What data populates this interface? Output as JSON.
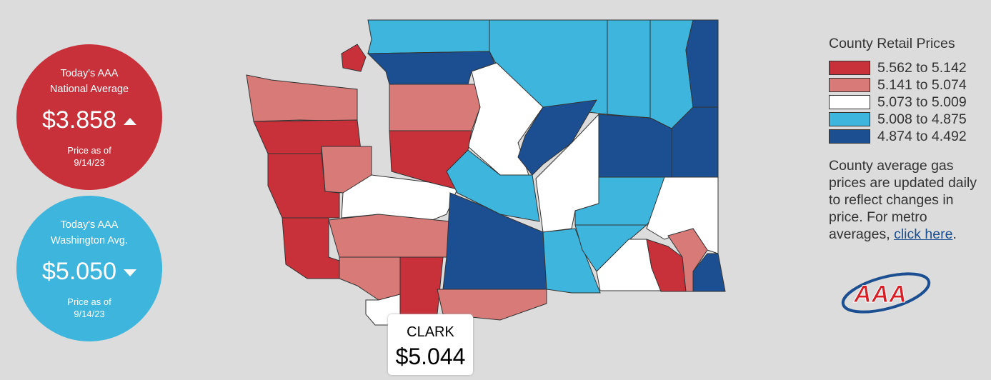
{
  "national": {
    "heading": [
      "Today's AAA",
      "National Average"
    ],
    "price": "$3.858",
    "date_label": [
      "Price as of",
      "9/14/23"
    ]
  },
  "state": {
    "heading": [
      "Today's AAA",
      "Washington Avg."
    ],
    "price": "$5.050",
    "date_label": [
      "Price as of",
      "9/14/23"
    ]
  },
  "legend": {
    "title": "County Retail Prices",
    "items": [
      {
        "label": "5.562 to 5.142",
        "color": "#c8313a"
      },
      {
        "label": "5.141 to 5.074",
        "color": "#d87a78"
      },
      {
        "label": "5.073 to 5.009",
        "color": "#ffffff"
      },
      {
        "label": "5.008 to 4.875",
        "color": "#3db5dd"
      },
      {
        "label": "4.874 to 4.492",
        "color": "#1b4f91"
      }
    ]
  },
  "note": {
    "text": "County average gas prices are updated daily to reflect changes in price. For metro averages, ",
    "link": "click here",
    "end": "."
  },
  "tooltip": {
    "county": "CLARK",
    "price": "$5.044"
  },
  "logo": "AAA"
}
